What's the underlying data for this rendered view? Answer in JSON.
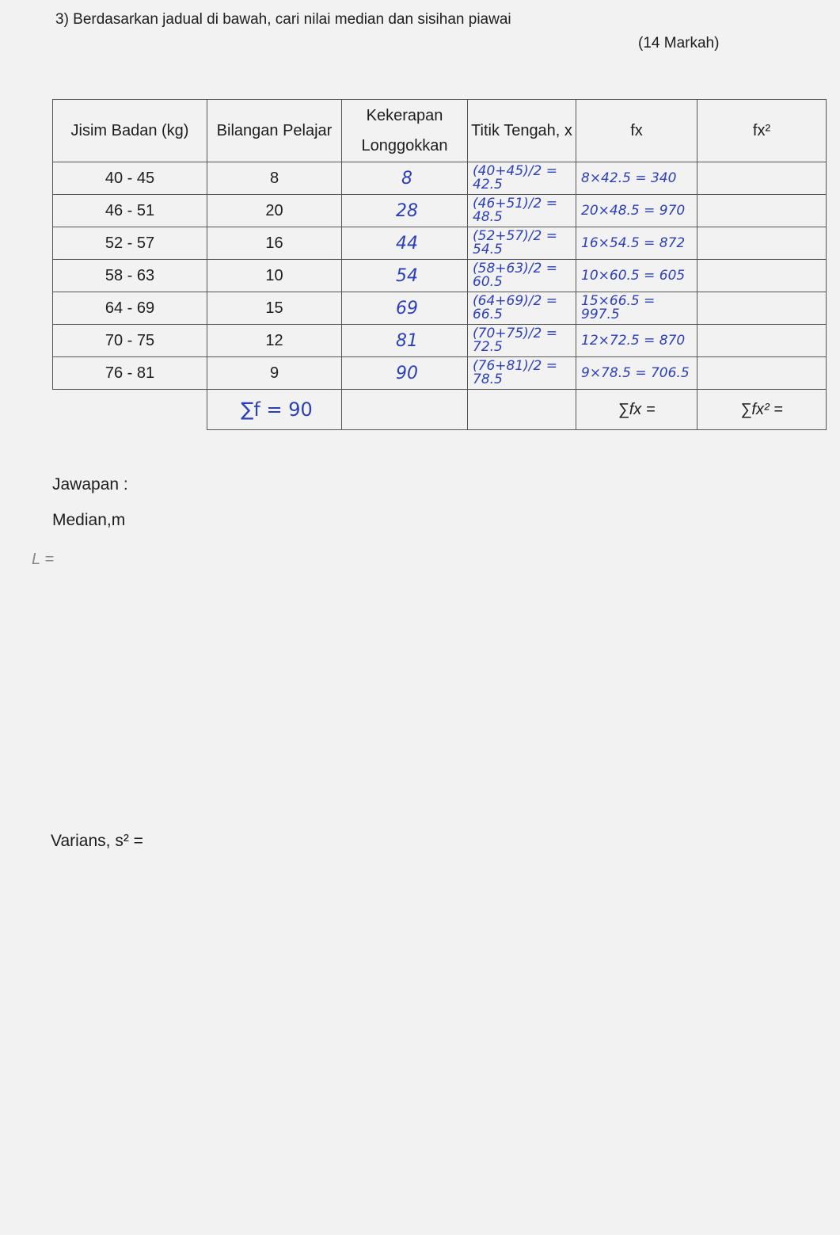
{
  "question": "3) Berdasarkan jadual di bawah, cari nilai median dan sisihan piawai",
  "marks": "(14 Markah)",
  "table": {
    "headers": [
      "Jisim Badan (kg)",
      "Bilangan Pelajar",
      "Kekerapan Longgokkan",
      "Titik Tengah, x",
      "fx",
      "fx²"
    ],
    "rows": [
      {
        "range": "40 - 45",
        "f": "8",
        "cf": "8",
        "mid": "(40+45)/2 = 42.5",
        "fx": "8×42.5 = 340"
      },
      {
        "range": "46 - 51",
        "f": "20",
        "cf": "28",
        "mid": "(46+51)/2 = 48.5",
        "fx": "20×48.5 = 970"
      },
      {
        "range": "52 - 57",
        "f": "16",
        "cf": "44",
        "mid": "(52+57)/2 = 54.5",
        "fx": "16×54.5 = 872"
      },
      {
        "range": "58 - 63",
        "f": "10",
        "cf": "54",
        "mid": "(58+63)/2 = 60.5",
        "fx": "10×60.5 = 605"
      },
      {
        "range": "64 - 69",
        "f": "15",
        "cf": "69",
        "mid": "(64+69)/2 = 66.5",
        "fx": "15×66.5 = 997.5"
      },
      {
        "range": "70 - 75",
        "f": "12",
        "cf": "81",
        "mid": "(70+75)/2 = 72.5",
        "fx": "12×72.5 = 870"
      },
      {
        "range": "76 - 81",
        "f": "9",
        "cf": "90",
        "mid": "(76+81)/2 = 78.5",
        "fx": "9×78.5 = 706.5"
      }
    ],
    "sum_f": "∑f = 90",
    "sum_fx": "∑fx =",
    "sum_fx2": "∑fx² ="
  },
  "answer_label": "Jawapan :",
  "median_label": "Median,m",
  "median_note": "L =",
  "variance_label": "Varians, s² ="
}
